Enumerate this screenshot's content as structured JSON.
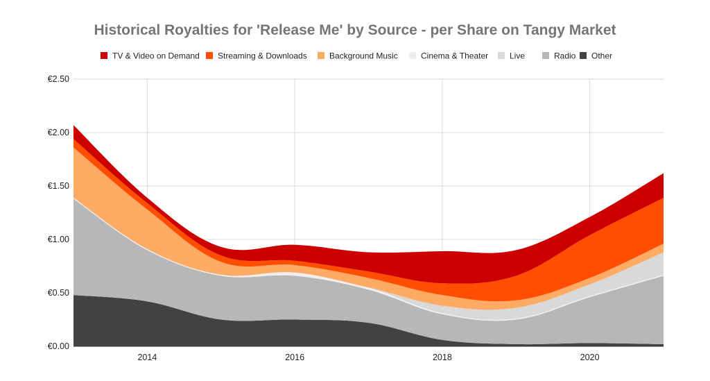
{
  "chart_data": {
    "type": "area",
    "stacked": true,
    "title": "Historical Royalties for 'Release Me' by Source - per Share on Tangy Market",
    "xlabel": "",
    "ylabel": "",
    "x": [
      2013,
      2014,
      2015,
      2016,
      2017,
      2018,
      2019,
      2020,
      2021
    ],
    "xlim": [
      2013,
      2021
    ],
    "x_ticks": [
      2014,
      2016,
      2018,
      2020
    ],
    "x_tick_labels": [
      "2014",
      "2016",
      "2018",
      "2020"
    ],
    "ylim": [
      0,
      2.5
    ],
    "y_ticks": [
      0,
      0.5,
      1.0,
      1.5,
      2.0,
      2.5
    ],
    "y_tick_labels": [
      "€0.00",
      "€0.50",
      "€1.00",
      "€1.50",
      "€2.00",
      "€2.50"
    ],
    "grid": true,
    "legend_position": "top",
    "series": [
      {
        "name": "Other",
        "color": "#424242",
        "values": [
          0.48,
          0.42,
          0.25,
          0.25,
          0.22,
          0.06,
          0.02,
          0.03,
          0.02
        ]
      },
      {
        "name": "Radio",
        "color": "#b7b7b7",
        "values": [
          0.9,
          0.48,
          0.41,
          0.41,
          0.31,
          0.24,
          0.23,
          0.43,
          0.64
        ]
      },
      {
        "name": "Cinema & Theater",
        "color": "#efefef",
        "values": [
          0.01,
          0.01,
          0.01,
          0.03,
          0.02,
          0.01,
          0.01,
          0.01,
          0.01
        ]
      },
      {
        "name": "Live",
        "color": "#d9d9d9",
        "values": [
          0.0,
          0.0,
          0.0,
          0.0,
          0.0,
          0.07,
          0.1,
          0.11,
          0.21
        ]
      },
      {
        "name": "Background Music",
        "color": "#ffab66",
        "values": [
          0.47,
          0.37,
          0.12,
          0.07,
          0.09,
          0.1,
          0.07,
          0.06,
          0.08
        ]
      },
      {
        "name": "Streaming & Downloads",
        "color": "#ff4e00",
        "values": [
          0.08,
          0.06,
          0.06,
          0.04,
          0.06,
          0.11,
          0.23,
          0.4,
          0.43
        ]
      },
      {
        "name": "TV & Video on Demand",
        "color": "#cc0000",
        "values": [
          0.13,
          0.05,
          0.08,
          0.15,
          0.18,
          0.3,
          0.24,
          0.17,
          0.23
        ]
      }
    ],
    "legend_order": [
      "TV & Video on Demand",
      "Streaming & Downloads",
      "Background Music",
      "Cinema & Theater",
      "Live",
      "Radio",
      "Other"
    ]
  }
}
